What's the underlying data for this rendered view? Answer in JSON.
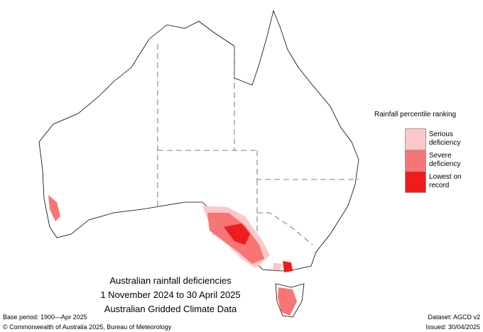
{
  "map": {
    "title_lines": [
      "Australian rainfall deficiencies",
      "1 November 2024 to 30 April 2025",
      "Australian Gridded Climate Data"
    ],
    "legend": {
      "title": "Rainfall percentile ranking",
      "items": [
        {
          "label": "Serious deficiency",
          "color": "#fcc8c8"
        },
        {
          "label": "Severe deficiency",
          "color": "#f77575"
        },
        {
          "label": "Lowest on record",
          "color": "#ee1c1c"
        }
      ]
    },
    "footer": {
      "base_period": "Base period: 1900—Apr 2025",
      "dataset": "Dataset: AGCD v2",
      "copyright": "© Commonwealth of Australia 2025, Bureau of Meteorology",
      "issued": "Issued: 30/04/2025"
    }
  }
}
